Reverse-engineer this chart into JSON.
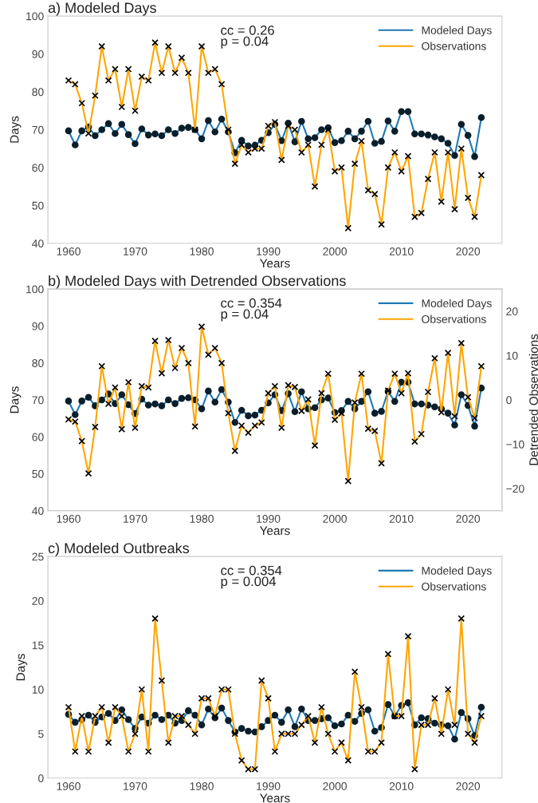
{
  "chart_data": [
    {
      "type": "line",
      "title": "a) Modeled Days",
      "xlabel": "Years",
      "ylabel": "Days",
      "xlim": [
        1956.9,
        2025.1
      ],
      "ylim": [
        40,
        100
      ],
      "xticks": [
        1960,
        1970,
        1980,
        1990,
        2000,
        2010,
        2020
      ],
      "yticks": [
        40,
        50,
        60,
        70,
        80,
        90,
        100
      ],
      "legend": "top right",
      "annotations": [
        "cc = 0.26\np = 0.04"
      ],
      "x": [
        1960,
        1961,
        1962,
        1963,
        1964,
        1965,
        1966,
        1967,
        1968,
        1969,
        1970,
        1971,
        1972,
        1973,
        1974,
        1975,
        1976,
        1977,
        1978,
        1979,
        1980,
        1981,
        1982,
        1983,
        1984,
        1985,
        1986,
        1987,
        1988,
        1989,
        1990,
        1991,
        1992,
        1993,
        1994,
        1995,
        1996,
        1997,
        1998,
        1999,
        2000,
        2001,
        2002,
        2003,
        2004,
        2005,
        2006,
        2007,
        2008,
        2009,
        2010,
        2011,
        2012,
        2013,
        2014,
        2015,
        2016,
        2017,
        2018,
        2019,
        2020,
        2021,
        2022
      ],
      "series": [
        {
          "name": "Modeled Days",
          "color": "#1f78b4",
          "marker": "circle",
          "values": [
            69.7,
            66.0,
            69.7,
            70.7,
            68.4,
            70.0,
            71.6,
            69.0,
            71.4,
            68.7,
            66.3,
            70.2,
            68.6,
            68.9,
            68.4,
            70.0,
            69.0,
            70.4,
            70.6,
            70.0,
            67.6,
            72.4,
            69.4,
            72.8,
            69.4,
            63.9,
            67.2,
            65.7,
            65.9,
            67.2,
            69.2,
            71.4,
            67.1,
            71.7,
            66.8,
            72.2,
            67.6,
            67.9,
            70.0,
            70.5,
            66.6,
            67.1,
            69.6,
            67.6,
            69.6,
            72.2,
            66.4,
            66.9,
            72.3,
            69.6,
            74.8,
            74.8,
            68.9,
            68.9,
            68.6,
            68.1,
            67.6,
            66.4,
            63.2,
            71.4,
            68.5,
            62.9,
            73.2
          ]
        },
        {
          "name": "Observations",
          "color": "#ffa500",
          "marker": "cross",
          "values": [
            83,
            82,
            77,
            69,
            79,
            92,
            83,
            86,
            76,
            86,
            75,
            84,
            83,
            93,
            85,
            92,
            85,
            89,
            85,
            70,
            92,
            85,
            86,
            82,
            70,
            61,
            66,
            64,
            65,
            65,
            71,
            72,
            62,
            71,
            70,
            64,
            66,
            55,
            66,
            70,
            59,
            60,
            44,
            61,
            67,
            54,
            53,
            45,
            60,
            64,
            59,
            63,
            47,
            48,
            57,
            64,
            51,
            64,
            49,
            65,
            52,
            47,
            58
          ]
        }
      ]
    },
    {
      "type": "line",
      "title": "b) Modeled Days with Detrended Observations",
      "xlabel": "Years",
      "ylabel": "Days",
      "y2label": "Detrended Observations",
      "xlim": [
        1956.9,
        2025.1
      ],
      "ylim": [
        40,
        100
      ],
      "y2lim": [
        -25,
        25
      ],
      "xticks": [
        1960,
        1970,
        1980,
        1990,
        2000,
        2010,
        2020
      ],
      "yticks": [
        40,
        50,
        60,
        70,
        80,
        90,
        100
      ],
      "y2ticks": [
        -20,
        -10,
        0,
        10,
        20
      ],
      "legend": "top right",
      "annotations": [
        "cc = 0.354\np = 0.04"
      ],
      "x": [
        1960,
        1961,
        1962,
        1963,
        1964,
        1965,
        1966,
        1967,
        1968,
        1969,
        1970,
        1971,
        1972,
        1973,
        1974,
        1975,
        1976,
        1977,
        1978,
        1979,
        1980,
        1981,
        1982,
        1983,
        1984,
        1985,
        1986,
        1987,
        1988,
        1989,
        1990,
        1991,
        1992,
        1993,
        1994,
        1995,
        1996,
        1997,
        1998,
        1999,
        2000,
        2001,
        2002,
        2003,
        2004,
        2005,
        2006,
        2007,
        2008,
        2009,
        2010,
        2011,
        2012,
        2013,
        2014,
        2015,
        2016,
        2017,
        2018,
        2019,
        2020,
        2021,
        2022
      ],
      "series": [
        {
          "name": "Modeled Days",
          "color": "#1f78b4",
          "marker": "circle",
          "values": [
            69.7,
            66.0,
            69.7,
            70.7,
            68.4,
            70.0,
            71.6,
            69.0,
            71.4,
            68.7,
            66.3,
            70.2,
            68.6,
            68.9,
            68.4,
            70.0,
            69.0,
            70.4,
            70.6,
            70.0,
            67.6,
            72.4,
            69.4,
            72.8,
            69.4,
            63.9,
            67.2,
            65.7,
            65.9,
            67.2,
            69.2,
            71.4,
            67.1,
            71.7,
            66.8,
            72.2,
            67.6,
            67.9,
            70.0,
            70.5,
            66.6,
            67.1,
            69.6,
            67.6,
            69.6,
            72.2,
            66.4,
            66.9,
            72.3,
            69.6,
            74.8,
            74.8,
            68.9,
            68.9,
            68.6,
            68.1,
            67.6,
            66.4,
            63.2,
            71.4,
            68.5,
            62.9,
            73.2
          ]
        },
        {
          "name": "Observations",
          "color": "#ffa500",
          "marker": "cross",
          "axis": "y2",
          "values": [
            -4.4,
            -4.9,
            -9.3,
            -16.6,
            -6.1,
            7.6,
            -0.9,
            2.8,
            -6.6,
            4.0,
            -6.3,
            3.1,
            2.8,
            13.3,
            6.0,
            13.5,
            7.2,
            11.7,
            8.3,
            -6.0,
            16.5,
            10.2,
            11.7,
            8.3,
            -3.0,
            -11.5,
            -5.8,
            -7.4,
            -5.8,
            -5.1,
            1.5,
            3.1,
            -6.3,
            3.3,
            2.9,
            -2.5,
            0.1,
            -10.3,
            1.5,
            5.9,
            -4.5,
            -3.0,
            -18.3,
            -0.6,
            5.9,
            -6.5,
            -7.0,
            -14.3,
            2.1,
            5.9,
            1.5,
            6.0,
            -9.4,
            -7.7,
            1.8,
            9.4,
            -2.8,
            10.6,
            -3.7,
            12.8,
            0.6,
            -4.1,
            7.6
          ]
        }
      ]
    },
    {
      "type": "line",
      "title": "c) Modeled Outbreaks",
      "xlabel": "Years",
      "ylabel": "Days",
      "xlim": [
        1956.9,
        2025.1
      ],
      "ylim": [
        0,
        25
      ],
      "xticks": [
        1960,
        1970,
        1980,
        1990,
        2000,
        2010,
        2020
      ],
      "yticks": [
        0,
        5,
        10,
        15,
        20,
        25
      ],
      "legend": "top right",
      "annotations": [
        "cc = 0.354\np = 0.004"
      ],
      "x": [
        1960,
        1961,
        1962,
        1963,
        1964,
        1965,
        1966,
        1967,
        1968,
        1969,
        1970,
        1971,
        1972,
        1973,
        1974,
        1975,
        1976,
        1977,
        1978,
        1979,
        1980,
        1981,
        1982,
        1983,
        1984,
        1985,
        1986,
        1987,
        1988,
        1989,
        1990,
        1991,
        1992,
        1993,
        1994,
        1995,
        1996,
        1997,
        1998,
        1999,
        2000,
        2001,
        2002,
        2003,
        2004,
        2005,
        2006,
        2007,
        2008,
        2009,
        2010,
        2011,
        2012,
        2013,
        2014,
        2015,
        2016,
        2017,
        2018,
        2019,
        2020,
        2021,
        2022
      ],
      "series": [
        {
          "name": "Modeled Days",
          "color": "#1f78b4",
          "marker": "circle",
          "values": [
            7.2,
            6.3,
            6.6,
            7.1,
            6.3,
            6.9,
            7.3,
            6.5,
            7.7,
            6.6,
            5.6,
            6.9,
            6.2,
            7.1,
            6.6,
            7.1,
            6.2,
            6.5,
            7.6,
            7.1,
            6.0,
            7.8,
            6.8,
            7.9,
            6.5,
            5.2,
            5.6,
            5.3,
            5.2,
            5.8,
            6.5,
            7.1,
            6.3,
            7.7,
            5.8,
            7.8,
            6.5,
            6.5,
            6.7,
            6.8,
            5.9,
            6.1,
            7.1,
            6.4,
            7.3,
            7.7,
            5.3,
            5.7,
            8.3,
            7.0,
            8.2,
            8.5,
            6.0,
            6.8,
            6.7,
            6.2,
            6.0,
            5.9,
            4.4,
            7.4,
            6.7,
            4.8,
            8.0
          ]
        },
        {
          "name": "Observations",
          "color": "#ffa500",
          "marker": "cross",
          "values": [
            8,
            3,
            7,
            3,
            7,
            8,
            4,
            8,
            7,
            3,
            5,
            10,
            3,
            18,
            11,
            4,
            7,
            7,
            6,
            5,
            9,
            9,
            7,
            10,
            10,
            5,
            2,
            1,
            1,
            11,
            9,
            3,
            5,
            5,
            5,
            6,
            7,
            4,
            8,
            5,
            3,
            4,
            2,
            12,
            8,
            3,
            3,
            4,
            14,
            7,
            7,
            16,
            1,
            6,
            6,
            9,
            5,
            10,
            6,
            18,
            5,
            4,
            7
          ]
        }
      ]
    }
  ]
}
